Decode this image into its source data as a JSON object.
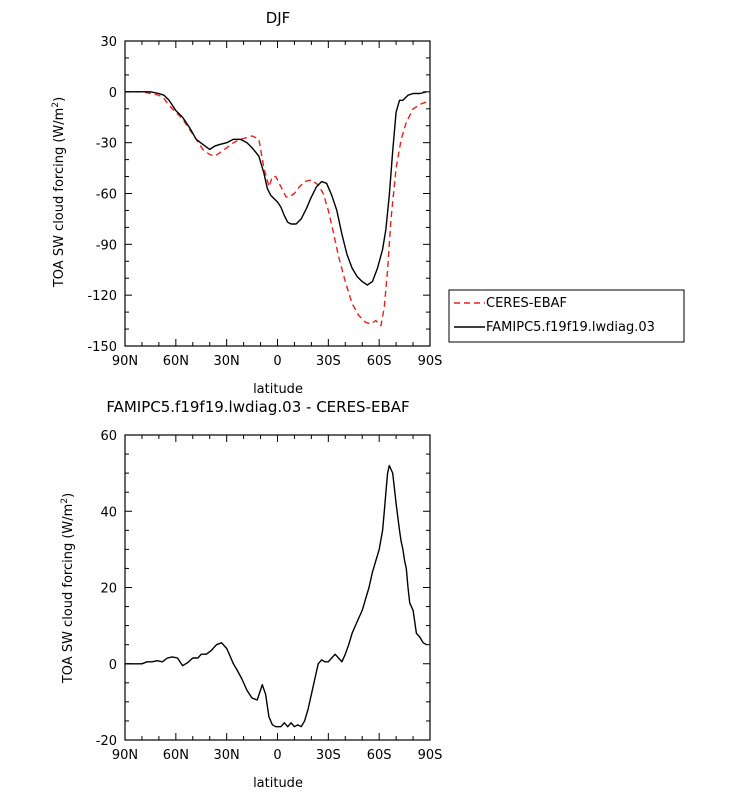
{
  "chart_data": [
    {
      "type": "line",
      "title": "DJF",
      "xlabel": "latitude",
      "ylabel": "TOA SW cloud forcing (W/m²)",
      "ylabel_pre": "TOA SW cloud forcing (W/m",
      "ylabel_sup": "2",
      "ylabel_post": ")",
      "xlim": [
        90,
        -90
      ],
      "ylim": [
        -150,
        30
      ],
      "x_ticks": [
        90,
        60,
        30,
        0,
        -30,
        -60,
        -90
      ],
      "x_tick_labels": [
        "90N",
        "60N",
        "30N",
        "0",
        "30S",
        "60S",
        "90S"
      ],
      "y_ticks": [
        30,
        0,
        -30,
        -60,
        -90,
        -120,
        -150
      ],
      "y_tick_labels": [
        "30",
        "0",
        "-30",
        "-60",
        "-90",
        "-120",
        "-150"
      ],
      "legend_position": "outside-right",
      "series": [
        {
          "name": "CERES-EBAF",
          "color": "#e8201e",
          "dash": "dashed",
          "x": [
            90,
            80,
            75,
            70,
            67,
            64,
            60,
            56,
            52,
            48,
            44,
            40,
            37,
            34,
            30,
            26,
            22,
            18,
            15,
            11,
            8,
            5,
            3,
            1,
            -1,
            -3,
            -5,
            -7,
            -10,
            -13,
            -16,
            -20,
            -24,
            -27,
            -30,
            -33,
            -36,
            -40,
            -44,
            -48,
            -52,
            -55,
            -58,
            -61,
            -63,
            -65,
            -67,
            -70,
            -73,
            -76,
            -80,
            -85,
            -88
          ],
          "y": [
            0,
            0,
            -1,
            -2,
            -4,
            -8,
            -12,
            -16,
            -22,
            -28,
            -34,
            -37,
            -38,
            -36,
            -33,
            -30,
            -28,
            -27,
            -26,
            -28,
            -45,
            -56,
            -50,
            -50,
            -54,
            -58,
            -62,
            -62,
            -60,
            -56,
            -53,
            -52,
            -55,
            -60,
            -70,
            -83,
            -97,
            -112,
            -125,
            -132,
            -136,
            -137,
            -135,
            -138,
            -127,
            -105,
            -75,
            -45,
            -28,
            -18,
            -10,
            -7,
            -6
          ]
        },
        {
          "name": "FAMIPC5.f19f19.lwdiag.03",
          "color": "#000000",
          "dash": "solid",
          "x": [
            90,
            80,
            75,
            70,
            67,
            64,
            60,
            56,
            52,
            48,
            44,
            40,
            37,
            34,
            30,
            26,
            22,
            18,
            15,
            11,
            8,
            6,
            4,
            2,
            0,
            -2,
            -4,
            -6,
            -8,
            -11,
            -14,
            -17,
            -20,
            -23,
            -26,
            -29,
            -32,
            -35,
            -38,
            -41,
            -44,
            -47,
            -50,
            -53,
            -56,
            -59,
            -62,
            -64,
            -66,
            -68,
            -70,
            -72,
            -74,
            -77,
            -80,
            -84,
            -88
          ],
          "y": [
            0,
            0,
            0,
            -1,
            -2,
            -5,
            -11,
            -15,
            -21,
            -28,
            -31,
            -34,
            -32,
            -31,
            -30,
            -28,
            -28,
            -30,
            -33,
            -38,
            -48,
            -57,
            -61,
            -63,
            -65,
            -68,
            -73,
            -77,
            -78,
            -78,
            -75,
            -69,
            -62,
            -56,
            -53,
            -54,
            -61,
            -70,
            -84,
            -96,
            -104,
            -109,
            -112,
            -114,
            -112,
            -104,
            -93,
            -81,
            -61,
            -35,
            -12,
            -5,
            -5,
            -2,
            -1,
            -1,
            0
          ]
        }
      ]
    },
    {
      "type": "line",
      "title": "FAMIPC5.f19f19.lwdiag.03 - CERES-EBAF",
      "xlabel": "latitude",
      "ylabel": "TOA SW cloud forcing (W/m²)",
      "ylabel_pre": "TOA SW cloud forcing (W/m",
      "ylabel_sup": "2",
      "ylabel_post": ")",
      "xlim": [
        90,
        -90
      ],
      "ylim": [
        -20,
        60
      ],
      "x_ticks": [
        90,
        60,
        30,
        0,
        -30,
        -60,
        -90
      ],
      "x_tick_labels": [
        "90N",
        "60N",
        "30N",
        "0",
        "30S",
        "60S",
        "90S"
      ],
      "y_ticks": [
        60,
        40,
        20,
        0,
        -20
      ],
      "y_tick_labels": [
        "60",
        "40",
        "20",
        "0",
        "-20"
      ],
      "series": [
        {
          "color": "#000000",
          "x": [
            90,
            85,
            80,
            77,
            74,
            71,
            68,
            65,
            62,
            59,
            56,
            53,
            50,
            47,
            45,
            42,
            39,
            36,
            33,
            30,
            28,
            26,
            24,
            21,
            18,
            15,
            12,
            9,
            7,
            5,
            3,
            1,
            0,
            -2,
            -4,
            -6,
            -8,
            -10,
            -12,
            -14,
            -16,
            -18,
            -20,
            -22,
            -24,
            -26,
            -28,
            -30,
            -32,
            -34,
            -36,
            -38,
            -40,
            -42,
            -44,
            -46,
            -48,
            -50,
            -52,
            -54,
            -56,
            -58,
            -60,
            -62,
            -63,
            -64,
            -65,
            -66,
            -68,
            -70,
            -72,
            -73,
            -74,
            -75,
            -76,
            -77,
            -78,
            -80,
            -82,
            -84,
            -86,
            -88
          ],
          "y": [
            0,
            0,
            0,
            0.5,
            0.5,
            0.8,
            0.5,
            1.5,
            1.8,
            1.5,
            -0.5,
            0.3,
            1.5,
            1.5,
            2.5,
            2.5,
            3.5,
            5,
            5.5,
            4,
            2,
            0,
            -1.5,
            -4,
            -7,
            -9,
            -9.5,
            -5.5,
            -8,
            -14,
            -16,
            -16.5,
            -16.5,
            -16.5,
            -15.5,
            -16.5,
            -15.5,
            -16.5,
            -16,
            -16.5,
            -15,
            -12,
            -8,
            -4,
            0,
            1,
            0.5,
            0.5,
            1.5,
            2.5,
            1.5,
            0.5,
            2.5,
            5,
            8,
            10,
            12,
            14,
            17,
            20,
            24,
            27,
            30,
            35,
            40,
            45,
            50,
            52,
            50,
            42,
            35,
            32,
            30,
            27,
            25,
            20,
            16,
            14,
            8,
            7,
            5.5,
            5
          ]
        }
      ]
    }
  ]
}
